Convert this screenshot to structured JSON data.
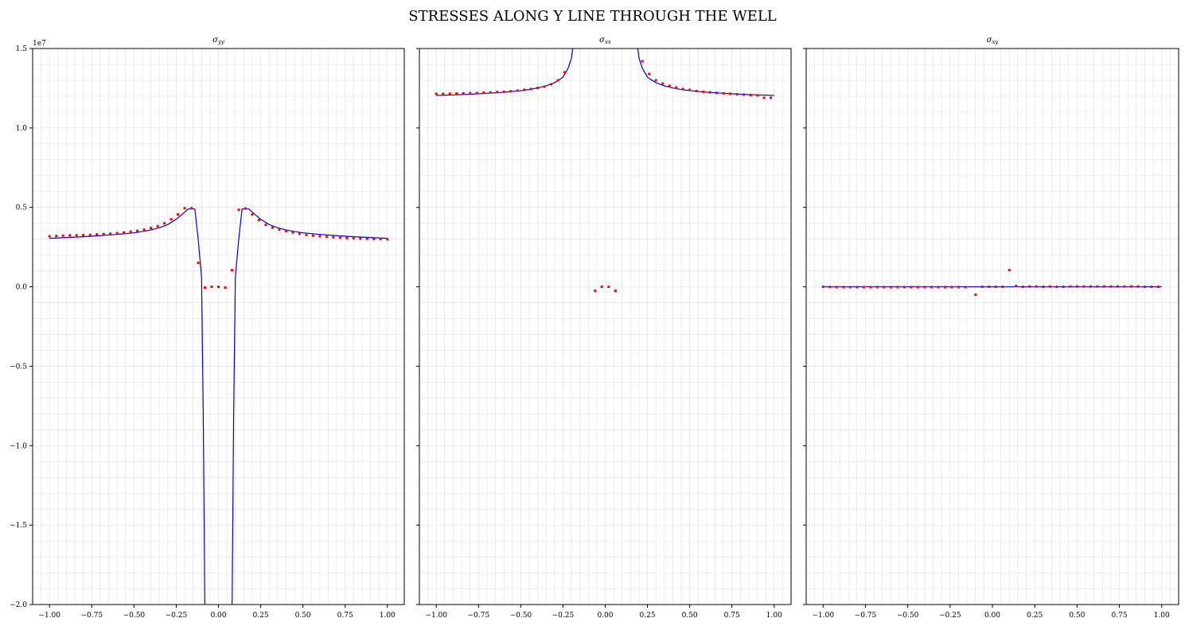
{
  "figure": {
    "title": "STRESSES ALONG Y LINE THROUGH THE WELL",
    "sci_multiplier": "1e7"
  },
  "colors": {
    "analytical": "#0000cc",
    "numerical": "#ff0000",
    "grid": "#e0e0e0",
    "axis": "#000000"
  },
  "chart_data": [
    {
      "type": "line",
      "title": "σyy",
      "title_main": "σ",
      "title_sub": "yy",
      "xlabel": "",
      "ylabel": "",
      "xlim": [
        -1.1,
        1.1
      ],
      "ylim": [
        -2.0,
        1.5
      ],
      "xticks": [
        -1.0,
        -0.75,
        -0.5,
        -0.25,
        0.0,
        0.25,
        0.5,
        0.75,
        1.0
      ],
      "xtick_labels": [
        "−1.00",
        "−0.75",
        "−0.50",
        "−0.25",
        "0.00",
        "0.25",
        "0.50",
        "0.75",
        "1.00"
      ],
      "yticks": [
        -2.0,
        -1.5,
        -1.0,
        -0.5,
        0.0,
        0.5,
        1.0,
        1.5
      ],
      "ytick_labels": [
        "−2.0",
        "−1.5",
        "−1.0",
        "−0.5",
        "0.0",
        "0.5",
        "1.0",
        "1.5"
      ],
      "show_yticklabels": true,
      "grid": true,
      "series": [
        {
          "name": "analytical",
          "style": "line",
          "x": [
            -1.0,
            -0.9,
            -0.8,
            -0.7,
            -0.6,
            -0.5,
            -0.45,
            -0.4,
            -0.35,
            -0.3,
            -0.25,
            -0.2,
            -0.18,
            -0.14,
            -0.12,
            -0.1,
            -0.09,
            -0.08,
            -0.06,
            0.06,
            0.08,
            0.09,
            0.1,
            0.12,
            0.14,
            0.18,
            0.2,
            0.25,
            0.3,
            0.35,
            0.4,
            0.45,
            0.5,
            0.6,
            0.7,
            0.8,
            0.9,
            1.0
          ],
          "y": [
            0.305,
            0.31,
            0.315,
            0.322,
            0.33,
            0.34,
            0.348,
            0.358,
            0.372,
            0.392,
            0.425,
            0.47,
            0.49,
            0.49,
            0.3,
            0.06,
            -0.8,
            -2.1,
            -2.1,
            -2.1,
            -2.1,
            -0.8,
            0.06,
            0.3,
            0.49,
            0.49,
            0.47,
            0.425,
            0.392,
            0.372,
            0.358,
            0.348,
            0.34,
            0.33,
            0.322,
            0.315,
            0.31,
            0.305
          ]
        },
        {
          "name": "numerical",
          "style": "scatter",
          "x": [
            -1.0,
            -0.96,
            -0.92,
            -0.88,
            -0.84,
            -0.8,
            -0.76,
            -0.72,
            -0.68,
            -0.64,
            -0.6,
            -0.56,
            -0.52,
            -0.48,
            -0.44,
            -0.4,
            -0.36,
            -0.32,
            -0.28,
            -0.24,
            -0.2,
            -0.16,
            -0.12,
            -0.08,
            -0.04,
            0.0,
            0.04,
            0.08,
            0.12,
            0.16,
            0.2,
            0.24,
            0.28,
            0.32,
            0.36,
            0.4,
            0.44,
            0.48,
            0.52,
            0.56,
            0.6,
            0.64,
            0.68,
            0.72,
            0.76,
            0.8,
            0.84,
            0.88,
            0.92,
            0.96,
            1.0
          ],
          "y": [
            0.318,
            0.32,
            0.322,
            0.324,
            0.325,
            0.326,
            0.327,
            0.33,
            0.332,
            0.334,
            0.338,
            0.342,
            0.347,
            0.353,
            0.36,
            0.37,
            0.382,
            0.4,
            0.425,
            0.455,
            0.495,
            0.495,
            0.15,
            -0.005,
            0.0,
            0.0,
            -0.005,
            0.105,
            0.485,
            0.493,
            0.455,
            0.42,
            0.39,
            0.372,
            0.36,
            0.35,
            0.342,
            0.334,
            0.327,
            0.322,
            0.318,
            0.315,
            0.312,
            0.309,
            0.307,
            0.305,
            0.303,
            0.302,
            0.301,
            0.3,
            0.299
          ]
        }
      ]
    },
    {
      "type": "line",
      "title": "σxx",
      "title_main": "σ",
      "title_sub": "xx",
      "xlabel": "",
      "ylabel": "",
      "xlim": [
        -1.1,
        1.1
      ],
      "ylim": [
        -2.0,
        1.5
      ],
      "xticks": [
        -1.0,
        -0.75,
        -0.5,
        -0.25,
        0.0,
        0.25,
        0.5,
        0.75,
        1.0
      ],
      "xtick_labels": [
        "−1.00",
        "−0.75",
        "−0.50",
        "−0.25",
        "0.00",
        "0.25",
        "0.50",
        "0.75",
        "1.00"
      ],
      "yticks": [
        -2.0,
        -1.5,
        -1.0,
        -0.5,
        0.0,
        0.5,
        1.0,
        1.5
      ],
      "ytick_labels": [
        "−2.0",
        "−1.5",
        "−1.0",
        "−0.5",
        "0.0",
        "0.5",
        "1.0",
        "1.5"
      ],
      "show_yticklabels": false,
      "grid": true,
      "series": [
        {
          "name": "analytical",
          "style": "line",
          "x": [
            -1.0,
            -0.9,
            -0.8,
            -0.7,
            -0.6,
            -0.5,
            -0.45,
            -0.4,
            -0.35,
            -0.3,
            -0.27,
            -0.25,
            -0.22,
            -0.2,
            -0.19,
            0.19,
            0.2,
            0.22,
            0.25,
            0.27,
            0.3,
            0.35,
            0.4,
            0.45,
            0.5,
            0.6,
            0.7,
            0.8,
            0.9,
            1.0
          ],
          "y": [
            1.205,
            1.208,
            1.212,
            1.218,
            1.225,
            1.235,
            1.242,
            1.252,
            1.265,
            1.285,
            1.305,
            1.32,
            1.375,
            1.44,
            1.52,
            1.52,
            1.44,
            1.375,
            1.32,
            1.305,
            1.285,
            1.265,
            1.252,
            1.242,
            1.235,
            1.225,
            1.218,
            1.212,
            1.208,
            1.205
          ]
        },
        {
          "name": "numerical",
          "style": "scatter",
          "x": [
            -1.0,
            -0.96,
            -0.92,
            -0.88,
            -0.84,
            -0.8,
            -0.76,
            -0.72,
            -0.68,
            -0.64,
            -0.6,
            -0.56,
            -0.52,
            -0.48,
            -0.44,
            -0.4,
            -0.36,
            -0.32,
            -0.28,
            -0.24,
            -0.06,
            -0.02,
            0.02,
            0.06,
            0.22,
            0.26,
            0.3,
            0.34,
            0.38,
            0.42,
            0.46,
            0.5,
            0.54,
            0.58,
            0.62,
            0.66,
            0.7,
            0.74,
            0.78,
            0.82,
            0.86,
            0.9,
            0.94,
            0.98
          ],
          "y": [
            1.215,
            1.215,
            1.216,
            1.217,
            1.218,
            1.219,
            1.22,
            1.222,
            1.224,
            1.226,
            1.228,
            1.231,
            1.235,
            1.24,
            1.245,
            1.252,
            1.26,
            1.275,
            1.3,
            1.35,
            -0.025,
            0.0,
            0.0,
            -0.025,
            1.42,
            1.34,
            1.3,
            1.28,
            1.265,
            1.255,
            1.245,
            1.24,
            1.233,
            1.228,
            1.224,
            1.221,
            1.218,
            1.215,
            1.212,
            1.21,
            1.207,
            1.205,
            1.19,
            1.19
          ]
        }
      ]
    },
    {
      "type": "line",
      "title": "σxy",
      "title_main": "σ",
      "title_sub": "xy",
      "xlabel": "",
      "ylabel": "",
      "xlim": [
        -1.1,
        1.1
      ],
      "ylim": [
        -2.0,
        1.5
      ],
      "xticks": [
        -1.0,
        -0.75,
        -0.5,
        -0.25,
        0.0,
        0.25,
        0.5,
        0.75,
        1.0
      ],
      "xtick_labels": [
        "−1.00",
        "−0.75",
        "−0.50",
        "−0.25",
        "0.00",
        "0.25",
        "0.50",
        "0.75",
        "1.00"
      ],
      "yticks": [
        -2.0,
        -1.5,
        -1.0,
        -0.5,
        0.0,
        0.5,
        1.0,
        1.5
      ],
      "ytick_labels": [
        "−2.0",
        "−1.5",
        "−1.0",
        "−0.5",
        "0.0",
        "0.5",
        "1.0",
        "1.5"
      ],
      "show_yticklabels": false,
      "grid": true,
      "series": [
        {
          "name": "analytical",
          "style": "line",
          "x": [
            -1.0,
            1.0
          ],
          "y": [
            0.0,
            0.0
          ]
        },
        {
          "name": "numerical",
          "style": "scatter",
          "x": [
            -1.0,
            -0.96,
            -0.92,
            -0.88,
            -0.84,
            -0.8,
            -0.76,
            -0.72,
            -0.68,
            -0.64,
            -0.6,
            -0.56,
            -0.52,
            -0.48,
            -0.44,
            -0.4,
            -0.36,
            -0.32,
            -0.28,
            -0.24,
            -0.2,
            -0.16,
            -0.1,
            -0.06,
            -0.02,
            0.02,
            0.06,
            0.1,
            0.14,
            0.18,
            0.22,
            0.26,
            0.3,
            0.34,
            0.38,
            0.42,
            0.46,
            0.5,
            0.54,
            0.58,
            0.62,
            0.66,
            0.7,
            0.74,
            0.78,
            0.82,
            0.86,
            0.9,
            0.94,
            0.98
          ],
          "y": [
            0.0,
            -0.001,
            -0.002,
            -0.002,
            -0.002,
            -0.002,
            -0.002,
            -0.002,
            -0.002,
            -0.002,
            -0.002,
            -0.002,
            -0.002,
            -0.002,
            -0.002,
            -0.002,
            -0.002,
            -0.002,
            -0.002,
            -0.002,
            -0.002,
            -0.002,
            -0.05,
            0.0,
            0.0,
            0.0,
            0.0,
            0.105,
            0.005,
            0.0,
            0.002,
            0.002,
            0.0,
            0.002,
            0.0,
            0.0,
            0.002,
            0.002,
            0.002,
            0.002,
            0.002,
            0.002,
            0.002,
            0.002,
            0.002,
            0.002,
            0.002,
            0.0,
            0.0,
            0.0
          ]
        }
      ]
    }
  ]
}
